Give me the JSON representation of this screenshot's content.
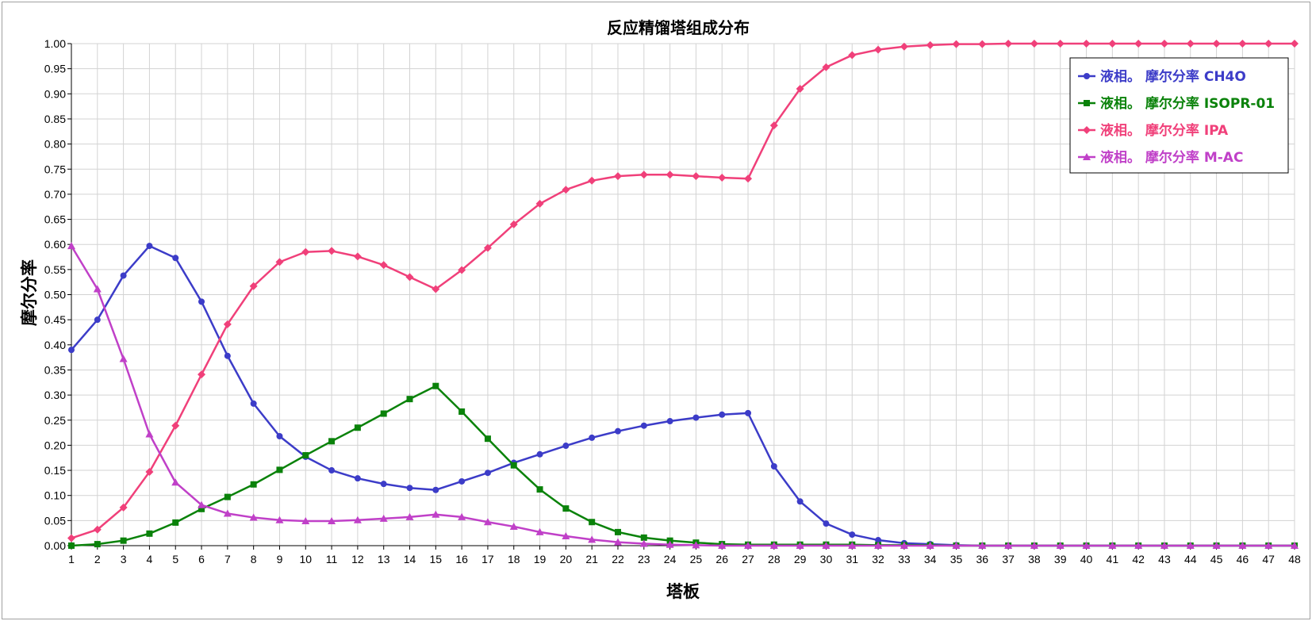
{
  "chart_data": {
    "type": "line",
    "title": "反应精馏塔组成分布",
    "xlabel": "塔板",
    "ylabel": "摩尔分率",
    "xlim": [
      1,
      48
    ],
    "ylim": [
      0,
      1
    ],
    "x_ticks": [
      "1",
      "2",
      "3",
      "4",
      "5",
      "6",
      "7",
      "8",
      "9",
      "10",
      "11",
      "12",
      "13",
      "14",
      "15",
      "16",
      "17",
      "18",
      "19",
      "20",
      "21",
      "22",
      "23",
      "24",
      "25",
      "26",
      "27",
      "28",
      "29",
      "30",
      "31",
      "32",
      "33",
      "34",
      "35",
      "36",
      "37",
      "38",
      "39",
      "40",
      "41",
      "42",
      "43",
      "44",
      "45",
      "46",
      "47",
      "48"
    ],
    "y_ticks": [
      "0.00",
      "0.05",
      "0.10",
      "0.15",
      "0.20",
      "0.25",
      "0.30",
      "0.35",
      "0.40",
      "0.45",
      "0.50",
      "0.55",
      "0.60",
      "0.65",
      "0.70",
      "0.75",
      "0.80",
      "0.85",
      "0.90",
      "0.95",
      "1.00"
    ],
    "grid": true,
    "legend_position": "top-right",
    "x": [
      1,
      2,
      3,
      4,
      5,
      6,
      7,
      8,
      9,
      10,
      11,
      12,
      13,
      14,
      15,
      16,
      17,
      18,
      19,
      20,
      21,
      22,
      23,
      24,
      25,
      26,
      27,
      28,
      29,
      30,
      31,
      32,
      33,
      34,
      35,
      36,
      37,
      38,
      39,
      40,
      41,
      42,
      43,
      44,
      45,
      46,
      47,
      48
    ],
    "series": [
      {
        "name": "液相。 摩尔分率 CH4O",
        "color": "#3c3cc8",
        "marker": "circle",
        "values": [
          0.39,
          0.45,
          0.538,
          0.597,
          0.573,
          0.486,
          0.378,
          0.283,
          0.218,
          0.177,
          0.15,
          0.134,
          0.123,
          0.115,
          0.111,
          0.128,
          0.145,
          0.165,
          0.182,
          0.199,
          0.215,
          0.228,
          0.239,
          0.248,
          0.255,
          0.261,
          0.264,
          0.158,
          0.088,
          0.044,
          0.022,
          0.011,
          0.005,
          0.003,
          0.001,
          0,
          0,
          0,
          0,
          0,
          0,
          0,
          0,
          0,
          0,
          0,
          0,
          0
        ]
      },
      {
        "name": "液相。 摩尔分率 ISOPR-01",
        "color": "#0a820a",
        "marker": "square",
        "values": [
          0,
          0.003,
          0.01,
          0.024,
          0.046,
          0.073,
          0.097,
          0.122,
          0.151,
          0.18,
          0.208,
          0.235,
          0.263,
          0.292,
          0.318,
          0.267,
          0.213,
          0.16,
          0.112,
          0.074,
          0.047,
          0.027,
          0.016,
          0.01,
          0.006,
          0.003,
          0.002,
          0.002,
          0.002,
          0.002,
          0.002,
          0.001,
          0.001,
          0.001,
          0,
          0,
          0,
          0,
          0,
          0,
          0,
          0,
          0,
          0,
          0,
          0,
          0,
          0
        ]
      },
      {
        "name": "液相。 摩尔分率 IPA",
        "color": "#f0407a",
        "marker": "diamond",
        "values": [
          0.015,
          0.032,
          0.076,
          0.147,
          0.239,
          0.341,
          0.441,
          0.517,
          0.565,
          0.585,
          0.587,
          0.576,
          0.559,
          0.535,
          0.511,
          0.549,
          0.593,
          0.64,
          0.681,
          0.709,
          0.727,
          0.736,
          0.739,
          0.739,
          0.736,
          0.733,
          0.731,
          0.837,
          0.91,
          0.953,
          0.977,
          0.988,
          0.994,
          0.997,
          0.999,
          0.999,
          1,
          1,
          1,
          1,
          1,
          1,
          1,
          1,
          1,
          1,
          1,
          1
        ]
      },
      {
        "name": "液相。 摩尔分率 M-AC",
        "color": "#c040c8",
        "marker": "triangle",
        "values": [
          0.597,
          0.511,
          0.372,
          0.222,
          0.126,
          0.081,
          0.064,
          0.056,
          0.051,
          0.049,
          0.049,
          0.051,
          0.054,
          0.057,
          0.062,
          0.057,
          0.047,
          0.038,
          0.027,
          0.019,
          0.012,
          0.007,
          0.004,
          0.002,
          0.001,
          0,
          0,
          0,
          0,
          0,
          0,
          0,
          0,
          0,
          0,
          0,
          0,
          0,
          0,
          0,
          0,
          0,
          0,
          0,
          0,
          0,
          0,
          0
        ]
      }
    ]
  }
}
